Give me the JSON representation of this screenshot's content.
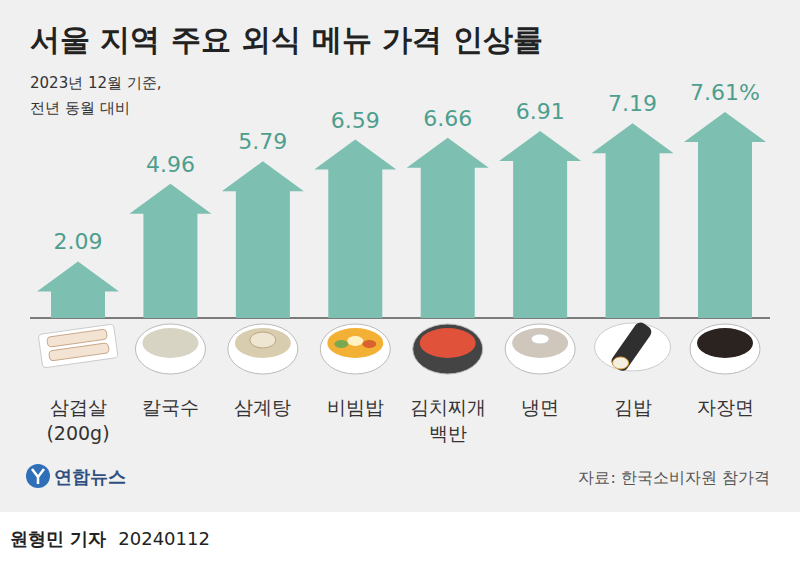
{
  "chart_data": {
    "type": "bar",
    "title": "서울 지역 주요 외식 메뉴 가격 인상률",
    "subtitle": [
      "2023년 12월 기준,",
      "전년 동월 대비"
    ],
    "categories": [
      "삼겹살 (200g)",
      "칼국수",
      "삼계탕",
      "비빔밥",
      "김치찌개 백반",
      "냉면",
      "김밥",
      "자장면"
    ],
    "values": [
      2.09,
      4.96,
      5.79,
      6.59,
      6.66,
      6.91,
      7.19,
      7.61
    ],
    "value_labels": [
      "2.09",
      "4.96",
      "5.79",
      "6.59",
      "6.66",
      "6.91",
      "7.19",
      "7.61%"
    ],
    "color": "#7dbfb0",
    "ylim": [
      0,
      7.61
    ],
    "tick_labels": false,
    "grid": false,
    "data_labels": true,
    "logo": "연합뉴스",
    "source": "자료: 한국소비자원 참가격",
    "byline": "원형민 기자",
    "date": "20240112"
  }
}
